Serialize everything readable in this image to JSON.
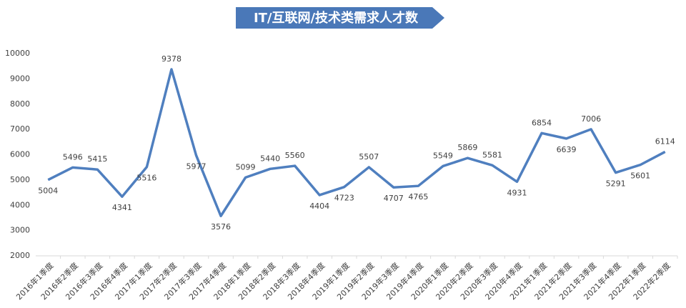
{
  "chart_data": {
    "type": "line",
    "title": "IT/互联网/技术类需求人才数",
    "categories": [
      "2016年1季度",
      "2016年2季度",
      "2016年3季度",
      "2016年4季度",
      "2017年1季度",
      "2017年2季度",
      "2017年3季度",
      "2017年4季度",
      "2018年1季度",
      "2018年2季度",
      "2018年3季度",
      "2018年4季度",
      "2019年1季度",
      "2019年2季度",
      "2019年3季度",
      "2019年4季度",
      "2020年1季度",
      "2020年2季度",
      "2020年3季度",
      "2020年4季度",
      "2021年1季度",
      "2021年2季度",
      "2021年3季度",
      "2021年4季度",
      "2022年1季度",
      "2022年2季度"
    ],
    "values": [
      5004,
      5496,
      5415,
      4341,
      5516,
      9378,
      5977,
      3576,
      5099,
      5440,
      5560,
      4404,
      4723,
      5507,
      4707,
      4765,
      5549,
      5869,
      5581,
      4931,
      6854,
      6639,
      7006,
      5291,
      5601,
      6114
    ],
    "color": "#4f7fbf",
    "ylim": [
      2000,
      10000
    ],
    "yticks": [
      2000,
      3000,
      4000,
      5000,
      6000,
      7000,
      8000,
      9000,
      10000
    ],
    "grid": false
  }
}
